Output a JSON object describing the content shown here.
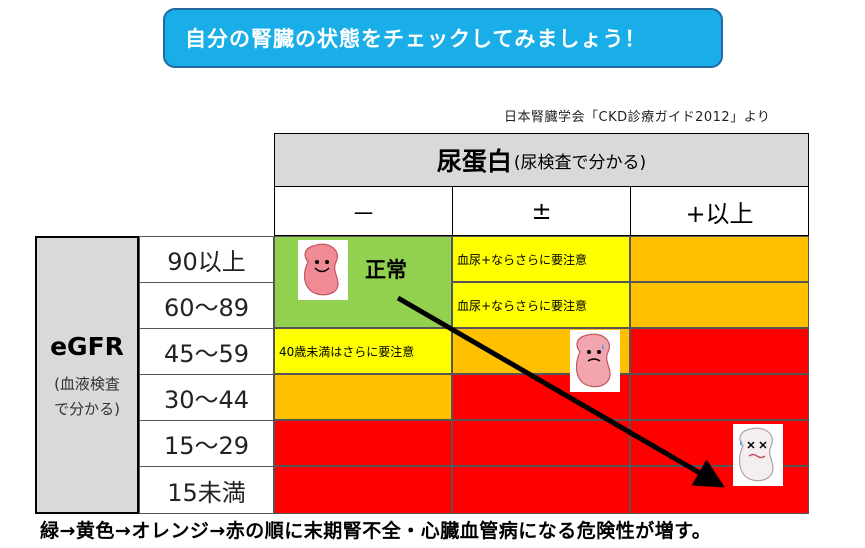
{
  "banner": {
    "title": "自分の腎臓の状態をチェックしてみましょう！"
  },
  "source": "日本腎臓学会「CKD診療ガイド2012」より",
  "protein": {
    "title": "尿蛋白",
    "sub": "(尿検査で分かる)",
    "cols": [
      "－",
      "±",
      "+以上"
    ]
  },
  "egfr": {
    "title": "eGFR",
    "sub1": "(血液検査",
    "sub2": "で分かる)"
  },
  "rows": [
    "90以上",
    "60～89",
    "45～59",
    "30～44",
    "15～29",
    "15未満"
  ],
  "notes": {
    "normal": "正常",
    "yellow1": "血尿+ならさらに要注意",
    "yellow2": "血尿+ならさらに要注意",
    "under40": "40歳未満はさらに要注意"
  },
  "icons": [
    "happy-kidney-icon",
    "worried-kidney-icon",
    "sick-kidney-icon"
  ],
  "colors": {
    "green": "#92d050",
    "yellow": "#ffff00",
    "orange": "#ffc000",
    "red": "#ff0000",
    "banner": "#1aaee8"
  },
  "footer": "緑→黄色→オレンジ→赤の順に末期腎不全・心臓血管病になる危険性が増す。"
}
